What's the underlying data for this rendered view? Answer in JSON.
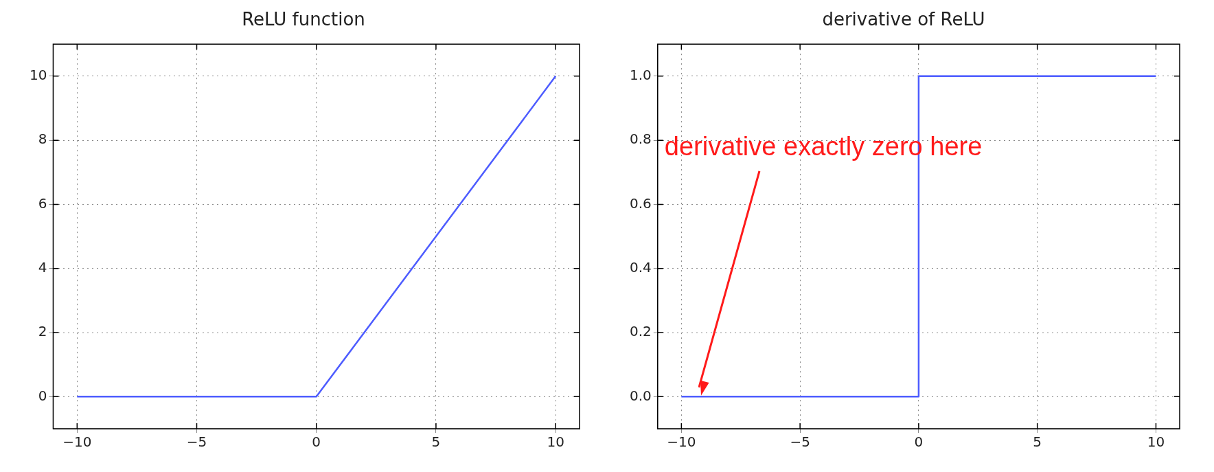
{
  "chart_data": [
    {
      "type": "line",
      "title": "ReLU function",
      "x": [
        -10,
        0,
        10
      ],
      "series": [
        {
          "color": "#4d5cff",
          "values": [
            0,
            0,
            10
          ]
        }
      ],
      "xlim": [
        -11,
        11
      ],
      "ylim": [
        -1,
        11
      ],
      "xticks": [
        -10,
        -5,
        0,
        5,
        10
      ],
      "yticks": [
        0,
        2,
        4,
        6,
        8,
        10
      ],
      "grid": true,
      "legend": false,
      "marker": "none",
      "line_style": "solid"
    },
    {
      "type": "line",
      "title": "derivative of ReLU",
      "x": [
        -10,
        0,
        0,
        10
      ],
      "series": [
        {
          "color": "#4d5cff",
          "values": [
            0,
            0,
            1,
            1
          ]
        }
      ],
      "xlim": [
        -11,
        11
      ],
      "ylim": [
        -0.1,
        1.1
      ],
      "xticks": [
        -10,
        -5,
        0,
        5,
        10
      ],
      "yticks": [
        {
          "value": 0,
          "label": "0.0"
        },
        {
          "value": 0.2,
          "label": "0.2"
        },
        {
          "value": 0.4,
          "label": "0.4"
        },
        {
          "value": 0.6,
          "label": "0.6"
        },
        {
          "value": 0.8,
          "label": "0.8"
        },
        {
          "value": 1,
          "label": "1.0"
        }
      ],
      "grid": true,
      "legend": false,
      "marker": "none",
      "line_style": "solid",
      "annotations": [
        "derivative exactly zero here"
      ]
    }
  ]
}
